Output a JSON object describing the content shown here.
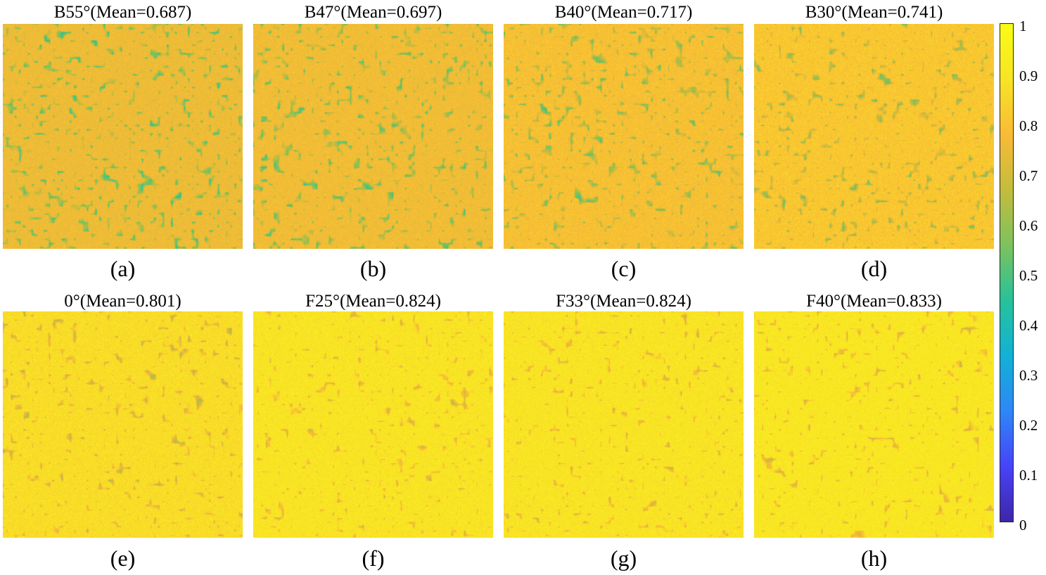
{
  "chart_data": {
    "type": "heatmap",
    "panels": [
      {
        "title": "B55°(Mean=0.687)",
        "caption": "(a)",
        "mean": 0.687
      },
      {
        "title": "B47°(Mean=0.697)",
        "caption": "(b)",
        "mean": 0.697
      },
      {
        "title": "B40°(Mean=0.717)",
        "caption": "(c)",
        "mean": 0.717
      },
      {
        "title": "B30°(Mean=0.741)",
        "caption": "(d)",
        "mean": 0.741
      },
      {
        "title": "0°(Mean=0.801)",
        "caption": "(e)",
        "mean": 0.801
      },
      {
        "title": "F25°(Mean=0.824)",
        "caption": "(f)",
        "mean": 0.824
      },
      {
        "title": "F33°(Mean=0.824)",
        "caption": "(g)",
        "mean": 0.824
      },
      {
        "title": "F40°(Mean=0.833)",
        "caption": "(h)",
        "mean": 0.833
      }
    ],
    "colorbar": {
      "colormap": "parula",
      "range": [
        0,
        1
      ],
      "ticks": [
        "1",
        "0.9",
        "0.8",
        "0.7",
        "0.6",
        "0.5",
        "0.4",
        "0.3",
        "0.2",
        "0.1",
        "0"
      ]
    }
  },
  "colors": {
    "parula_stops": [
      "#3e26a8",
      "#4743f8",
      "#2e87f7",
      "#12b1d6",
      "#27c29a",
      "#7dc25d",
      "#c4bc3c",
      "#f9bb36",
      "#f8e425",
      "#f9fb15"
    ]
  }
}
